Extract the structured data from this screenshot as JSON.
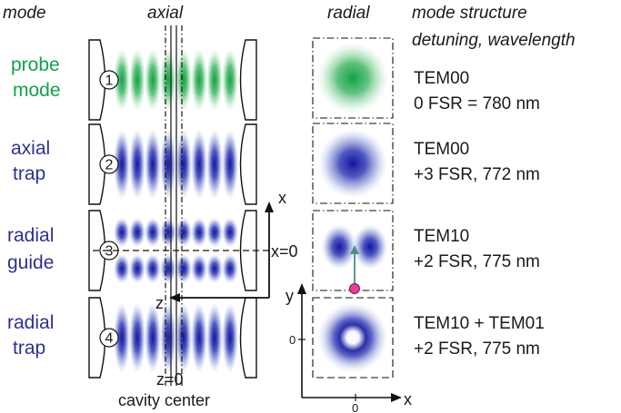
{
  "headers": {
    "mode": "mode",
    "axial": "axial",
    "radial": "radial",
    "structure_line1": "mode structure",
    "structure_line2": "detuning, wavelength"
  },
  "rows": [
    {
      "number": "1",
      "label_line1": "probe",
      "label_line2": "mode",
      "label_color": "#13a14b",
      "info_line1": "TEM00",
      "info_line2": "0 FSR = 780 nm"
    },
    {
      "number": "2",
      "label_line1": "axial",
      "label_line2": "trap",
      "label_color": "#2e3192",
      "info_line1": "TEM00",
      "info_line2": "+3 FSR, 772 nm"
    },
    {
      "number": "3",
      "label_line1": "radial",
      "label_line2": "guide",
      "label_color": "#2e3192",
      "info_line1": "TEM10",
      "info_line2": "+2 FSR, 775 nm"
    },
    {
      "number": "4",
      "label_line1": "radial",
      "label_line2": "trap",
      "label_color": "#2e3192",
      "info_line1": "TEM10 + TEM01",
      "info_line2": "+2 FSR, 775 nm"
    }
  ],
  "axis_labels": {
    "x": "x",
    "z": "z",
    "x_zero": "x=0",
    "z_zero": "z=0",
    "cavity_center": "cavity center",
    "y": "y",
    "radial_y_zero": "0",
    "radial_x_zero": "0",
    "radial_x": "x"
  },
  "colors": {
    "probe": "#1aa84a",
    "trap": "#1e1fa0",
    "atom": "#e0409a",
    "arrow": "#4a8f86"
  }
}
